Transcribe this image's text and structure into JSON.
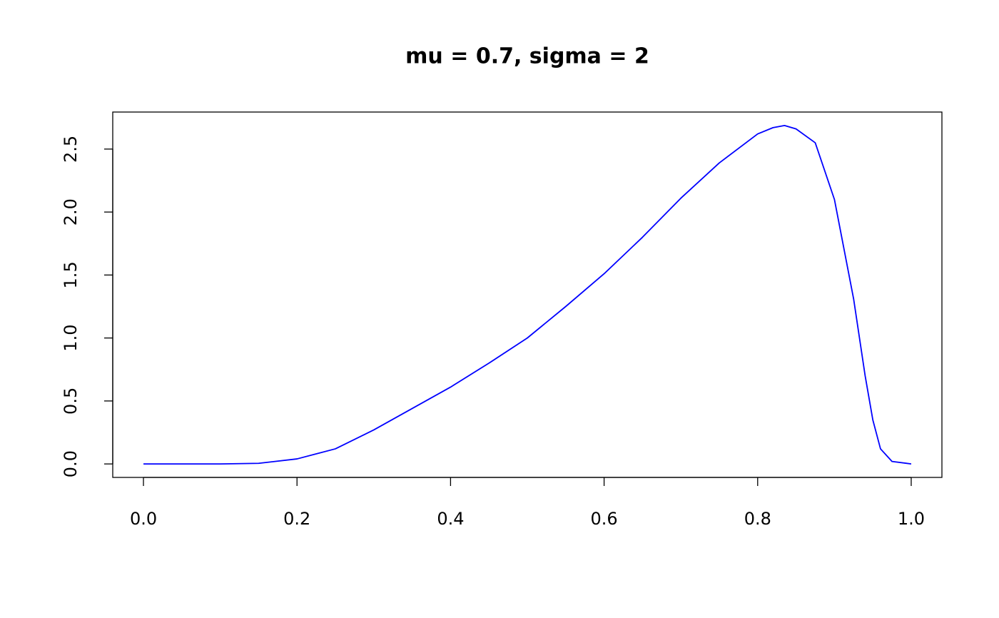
{
  "chart_data": {
    "type": "line",
    "title": "mu = 0.7, sigma = 2",
    "x": [
      0,
      0.05,
      0.1,
      0.15,
      0.2,
      0.25,
      0.3,
      0.35,
      0.4,
      0.45,
      0.5,
      0.55,
      0.6,
      0.65,
      0.7,
      0.75,
      0.8,
      0.82,
      0.835,
      0.85,
      0.875,
      0.9,
      0.925,
      0.94,
      0.95,
      0.96,
      0.975,
      1
    ],
    "values": [
      0,
      0,
      0,
      0.005,
      0.04,
      0.12,
      0.27,
      0.44,
      0.61,
      0.8,
      1.0,
      1.25,
      1.51,
      1.8,
      2.11,
      2.39,
      2.62,
      2.67,
      2.687,
      2.66,
      2.55,
      2.1,
      1.31,
      0.7,
      0.35,
      0.12,
      0.02,
      0
    ],
    "color": "#0000ff",
    "xlim": [
      -0.04,
      1.04
    ],
    "ylim": [
      -0.107,
      2.794
    ],
    "xticks": [
      {
        "value": 0,
        "label": "0.0"
      },
      0.2,
      0.4,
      0.6,
      0.8,
      {
        "value": 1,
        "label": "1.0"
      }
    ],
    "yticks": [
      {
        "value": 0,
        "label": "0.0"
      },
      0.5,
      {
        "value": 1,
        "label": "1.0"
      },
      1.5,
      {
        "value": 2,
        "label": "2.0"
      },
      2.5
    ]
  }
}
